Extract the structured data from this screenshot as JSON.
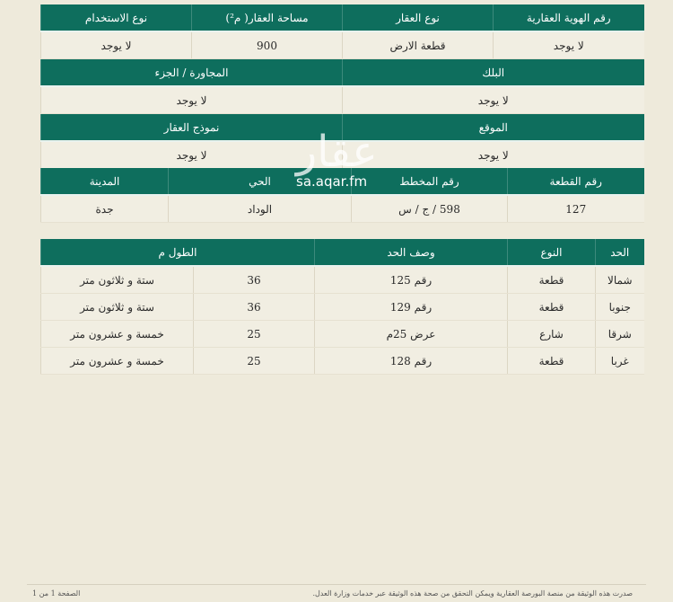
{
  "property": {
    "row1": {
      "headers": [
        "رقم الهوية العقارية",
        "نوع العقار",
        "مساحة العقار( م²)",
        "نوع الاستخدام"
      ],
      "values": [
        "لا يوجد",
        "قطعة الارض",
        "900",
        "لا يوجد"
      ]
    },
    "row2": {
      "headers": [
        "البلك",
        "المجاورة / الجزء"
      ],
      "values": [
        "لا يوجد",
        "لا يوجد"
      ]
    },
    "row3": {
      "headers": [
        "الموقع",
        "نموذج العقار"
      ],
      "values": [
        "لا يوجد",
        "لا يوجد"
      ]
    },
    "row4": {
      "headers": [
        "رقم القطعة",
        "رقم المخطط",
        "الحي",
        "المدينة"
      ],
      "values": [
        "127",
        "598 / ج / س",
        "الوداد",
        "جدة"
      ]
    }
  },
  "boundaries": {
    "headers": [
      "الحد",
      "النوع",
      "وصف الحد",
      "الطول م"
    ],
    "rows": [
      {
        "side": "شمالا",
        "type": "قطعة",
        "desc": "رقم 125",
        "len": "36",
        "len_words": "ستة و ثلاثون متر"
      },
      {
        "side": "جنوبا",
        "type": "قطعة",
        "desc": "رقم 129",
        "len": "36",
        "len_words": "ستة و ثلاثون متر"
      },
      {
        "side": "شرقا",
        "type": "شارع",
        "desc": "عرض 25م",
        "len": "25",
        "len_words": "خمسة و عشرون متر"
      },
      {
        "side": "غربا",
        "type": "قطعة",
        "desc": "رقم 128",
        "len": "25",
        "len_words": "خمسة و عشرون متر"
      }
    ]
  },
  "watermark": {
    "logo": "عقار",
    "url": "sa.aqar.fm"
  },
  "footer": {
    "note": "صدرت هذه الوثيقة من منصة البورصة العقارية ويمكن التحقق من صحة هذه الوثيقة عبر خدمات وزارة العدل.",
    "page": "الصفحة 1 من 1"
  },
  "colors": {
    "header": "#0e6e5d",
    "background": "#eeeadb"
  }
}
